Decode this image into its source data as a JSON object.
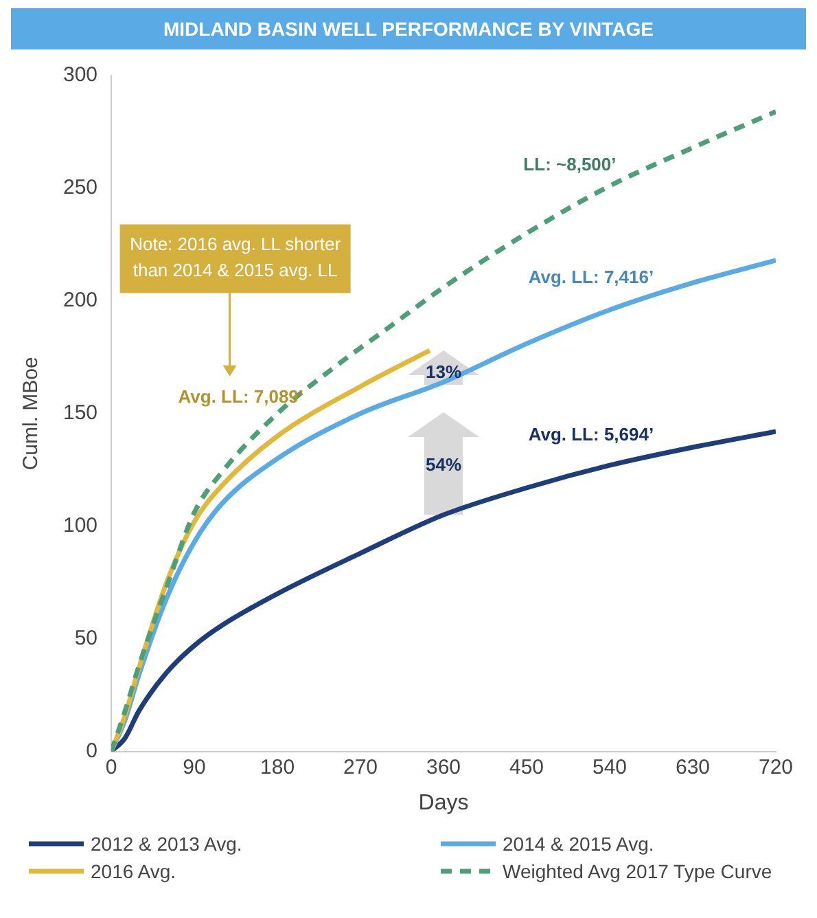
{
  "chart_data": {
    "type": "line",
    "title": "MIDLAND BASIN WELL PERFORMANCE BY VINTAGE",
    "xlabel": "Days",
    "ylabel": "Cuml. MBoe",
    "xlim": [
      0,
      720
    ],
    "xticks": [
      0,
      90,
      180,
      270,
      360,
      450,
      540,
      630,
      720
    ],
    "ylim": [
      0,
      300
    ],
    "yticks": [
      0,
      50,
      100,
      150,
      200,
      250,
      300
    ],
    "grid": false,
    "legend": "bottom",
    "marker": "none",
    "series": [
      {
        "name": "2012 & 2013 Avg.",
        "color": "#1f3d7a",
        "x": [
          0,
          15,
          30,
          60,
          90,
          120,
          180,
          270,
          360,
          450,
          540,
          630,
          720
        ],
        "values": [
          0,
          6,
          18,
          35,
          47,
          56,
          70,
          88,
          105,
          117,
          127,
          135,
          142
        ]
      },
      {
        "name": "2014 & 2015 Avg.",
        "color": "#5aaae6",
        "x": [
          0,
          15,
          30,
          60,
          90,
          120,
          180,
          270,
          360,
          450,
          540,
          630,
          720
        ],
        "values": [
          0,
          14,
          34,
          68,
          93,
          110,
          130,
          150,
          164,
          181,
          196,
          208,
          218
        ]
      },
      {
        "name": "2016 Avg.",
        "color": "#e0b83c",
        "x": [
          0,
          15,
          30,
          60,
          90,
          120,
          180,
          270,
          345
        ],
        "values": [
          0,
          16,
          37,
          75,
          102,
          118,
          140,
          162,
          178
        ]
      },
      {
        "name": "Weighted Avg 2017 Type Curve",
        "color": "#4f9e7a",
        "line_style": "dashed",
        "x": [
          0,
          15,
          30,
          60,
          90,
          120,
          180,
          240,
          300,
          360,
          450,
          540,
          630,
          720
        ],
        "values": [
          0,
          18,
          38,
          73,
          106,
          124,
          150,
          170,
          188,
          206,
          230,
          251,
          268,
          284
        ]
      }
    ],
    "annotations": [
      "Note: 2016 avg. LL shorter than 2014 & 2015 avg. LL",
      "Avg. LL: 7,089’",
      "LL: ~8,500’",
      "Avg. LL: 7,416’",
      "Avg. LL: 5,694’",
      "13%",
      "54%"
    ]
  }
}
